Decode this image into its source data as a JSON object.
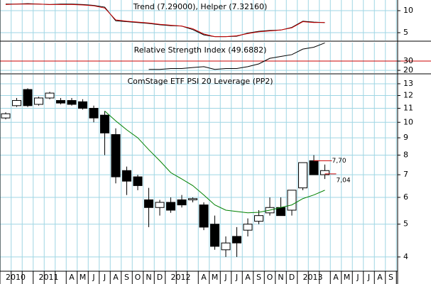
{
  "chart_data": [
    {
      "type": "line",
      "title": "Trend (7.29000), Helper (7.32160)",
      "series": [
        {
          "name": "Trend",
          "color": "#000000",
          "values": [
            11.5,
            11.5,
            11.6,
            11.5,
            11.4,
            11.5,
            11.5,
            11.4,
            11.2,
            10.8,
            7.7,
            7.5,
            7.3,
            7.1,
            6.8,
            6.6,
            6.5,
            5.7,
            4.5,
            4.1,
            4.1,
            4.2,
            4.9,
            5.3,
            5.5,
            5.6,
            6.2,
            7.6,
            7.4,
            7.29
          ]
        },
        {
          "name": "Helper",
          "color": "#cc0000",
          "values": [
            11.4,
            11.5,
            11.5,
            11.5,
            11.4,
            11.4,
            11.4,
            11.3,
            11.1,
            10.6,
            7.9,
            7.6,
            7.4,
            7.2,
            6.9,
            6.7,
            6.5,
            5.9,
            4.7,
            4.1,
            4.1,
            4.3,
            4.8,
            5.2,
            5.4,
            5.6,
            6.1,
            7.5,
            7.3,
            7.32
          ]
        }
      ],
      "ylim": [
        3.23,
        12.42
      ],
      "yticks": [
        10,
        5
      ],
      "grid": true
    },
    {
      "type": "line",
      "title": "Relative Strength Index (49.6882)",
      "series": [
        {
          "name": "Relative Strength Index",
          "color": "#000000",
          "values": [
            null,
            null,
            null,
            null,
            null,
            null,
            null,
            null,
            null,
            null,
            null,
            null,
            null,
            21,
            21,
            22,
            22,
            23,
            24,
            21,
            22,
            22,
            24,
            27,
            33,
            35,
            37,
            43,
            45,
            49.6882
          ]
        }
      ],
      "ylim": [
        17,
        50
      ],
      "yticks": [
        30,
        20
      ],
      "grid": true,
      "level": 30,
      "level_color": "#cc0000"
    },
    {
      "type": "candlestick",
      "title": "ComStage ETF PSI 20 Leverage (PP2)",
      "categories": [
        "2010",
        null,
        null,
        "2011",
        null,
        null,
        "A",
        "M",
        "J",
        "J",
        "A",
        "S",
        "O",
        "N",
        "D",
        "2012",
        null,
        null,
        "A",
        "M",
        "J",
        "J",
        "A",
        "S",
        "O",
        "N",
        "D",
        "2013",
        null,
        null,
        "A",
        "M",
        "J",
        "J",
        "A",
        "S"
      ],
      "open": [
        10.3,
        11.2,
        12.5,
        11.3,
        11.8,
        11.6,
        11.6,
        11.5,
        11.0,
        10.5,
        9.2,
        7.2,
        6.9,
        5.9,
        5.6,
        5.8,
        5.9,
        5.9,
        5.7,
        5.0,
        4.2,
        4.6,
        4.8,
        5.1,
        5.4,
        5.6,
        5.5,
        6.4,
        7.7,
        7.0,
        null,
        null,
        null,
        null,
        null,
        null
      ],
      "high": [
        10.7,
        11.8,
        12.6,
        11.9,
        12.3,
        11.8,
        11.8,
        11.7,
        11.2,
        10.8,
        9.6,
        7.4,
        7.0,
        6.4,
        5.9,
        6.0,
        6.1,
        6.0,
        5.8,
        5.3,
        4.6,
        4.9,
        5.2,
        5.5,
        6.0,
        6.0,
        6.3,
        7.6,
        8.0,
        7.5,
        null,
        null,
        null,
        null,
        null,
        null
      ],
      "low": [
        10.2,
        11.1,
        11.1,
        11.2,
        11.7,
        11.3,
        11.2,
        10.9,
        10.0,
        8.0,
        6.6,
        6.1,
        6.3,
        4.9,
        5.3,
        5.4,
        5.6,
        5.8,
        4.8,
        4.2,
        4.0,
        4.0,
        4.6,
        5.0,
        5.3,
        5.3,
        5.3,
        6.3,
        7.0,
        6.8,
        null,
        null,
        null,
        null,
        null,
        null
      ],
      "close": [
        10.6,
        11.6,
        11.2,
        11.8,
        12.2,
        11.4,
        11.3,
        11.0,
        10.3,
        9.3,
        6.9,
        6.7,
        6.5,
        5.6,
        5.8,
        5.5,
        5.7,
        5.95,
        4.9,
        4.3,
        4.4,
        4.4,
        5.0,
        5.3,
        5.6,
        5.3,
        6.3,
        7.6,
        7.0,
        7.2,
        null,
        null,
        null,
        null,
        null,
        null
      ],
      "average": {
        "color": "#008000",
        "values": [
          null,
          null,
          null,
          null,
          null,
          null,
          null,
          null,
          null,
          10.8,
          10.1,
          9.5,
          9.0,
          8.3,
          7.7,
          7.1,
          6.8,
          6.5,
          6.1,
          5.7,
          5.5,
          5.45,
          5.4,
          5.42,
          5.5,
          5.6,
          5.7,
          5.95,
          6.1,
          6.3,
          null,
          null,
          null,
          null,
          null,
          null
        ]
      },
      "annotations": [
        {
          "value": 7.7,
          "label": "7,70"
        },
        {
          "value": 7.04,
          "label": "7,04"
        }
      ],
      "annotation_color": "#cc0000",
      "ylim": [
        3.63,
        13.84
      ],
      "log": true,
      "yticks": [
        4,
        5,
        6,
        7,
        8,
        9,
        10,
        11,
        12,
        13
      ],
      "grid": true,
      "up_color": "#ffffff",
      "down_color": "#000000"
    }
  ]
}
